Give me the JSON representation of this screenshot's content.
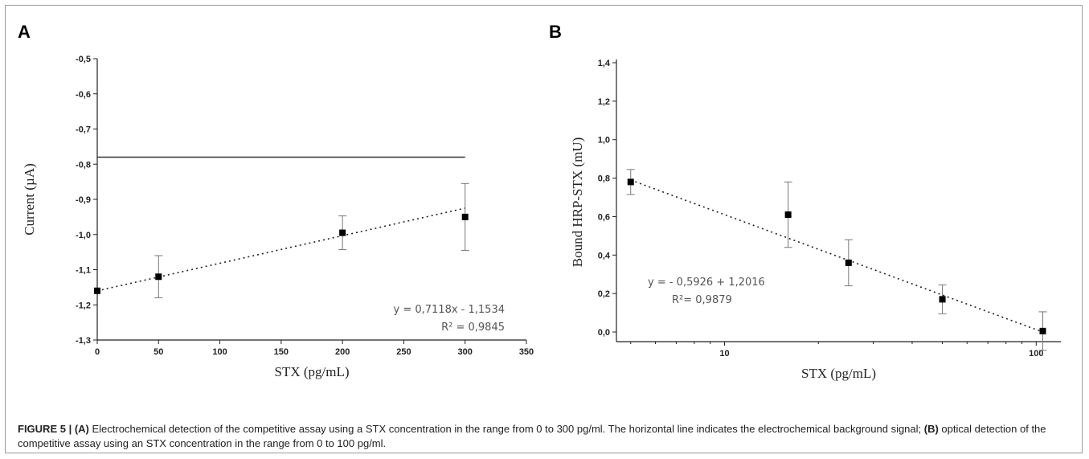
{
  "chart_data": [
    {
      "panel": "A",
      "type": "scatter",
      "xlabel": "STX (pg/mL)",
      "ylabel": "Current (µA)",
      "xlim": [
        0,
        350
      ],
      "ylim": [
        -1.3,
        -0.5
      ],
      "x_ticks": [
        0,
        50,
        100,
        150,
        200,
        250,
        300,
        350
      ],
      "x_tick_labels": [
        "0",
        "50",
        "100",
        "150",
        "200",
        "250",
        "300",
        "350"
      ],
      "y_ticks": [
        -0.5,
        -0.6,
        -0.7,
        -0.8,
        -0.9,
        -1.0,
        -1.1,
        -1.2,
        -1.3
      ],
      "y_tick_labels": [
        "-0,5",
        "-0,6",
        "-0,7",
        "-0,8",
        "-0,9",
        "-1,0",
        "-1,1",
        "-1,2",
        "-1,3"
      ],
      "points": [
        {
          "x": 0,
          "y": -1.16,
          "err": 0
        },
        {
          "x": 50,
          "y": -1.12,
          "err": 0.06
        },
        {
          "x": 200,
          "y": -0.995,
          "err": 0.048
        },
        {
          "x": 300,
          "y": -0.95,
          "err": 0.095
        }
      ],
      "background_line": {
        "y": -0.78,
        "x": [
          0,
          300
        ]
      },
      "fit": {
        "x": [
          0,
          300
        ],
        "y": [
          -1.16,
          -0.925
        ]
      },
      "annotation": {
        "line1": "y = 0,7118x - 1,1534",
        "line2": "R² = 0,9845"
      }
    },
    {
      "panel": "B",
      "type": "scatter",
      "xscale": "log",
      "xlabel": "STX (pg/mL)",
      "ylabel": "Bound HRP-STX (mU)",
      "xlim": [
        4.5,
        120
      ],
      "ylim": [
        -0.05,
        1.4
      ],
      "x_ticks": [
        10,
        100
      ],
      "x_tick_labels": [
        "10",
        "100"
      ],
      "y_ticks": [
        0.0,
        0.2,
        0.4,
        0.6,
        0.8,
        1.0,
        1.2,
        1.4
      ],
      "y_tick_labels": [
        "0,0",
        "0,2",
        "0,4",
        "0,6",
        "0,8",
        "1,0",
        "1,2",
        "1,4"
      ],
      "points": [
        {
          "x": 5,
          "y": 0.78,
          "err": 0.065
        },
        {
          "x": 16,
          "y": 0.61,
          "err": 0.17
        },
        {
          "x": 25,
          "y": 0.36,
          "err": 0.12
        },
        {
          "x": 50,
          "y": 0.17,
          "err": 0.075
        },
        {
          "x": 105,
          "y": 0.005,
          "err": 0.1
        }
      ],
      "fit": {
        "x": [
          5,
          105
        ],
        "y": [
          0.79,
          0.0
        ]
      },
      "annotation": {
        "line1": "y = - 0,5926 + 1,2016",
        "line2": "R²= 0,9879"
      }
    }
  ],
  "caption": {
    "label": "FIGURE 5 | ",
    "a_tag": "(A)",
    "a_text": " Electrochemical detection of the competitive assay using a STX concentration in the range from 0 to 300 pg/ml. The horizontal line indicates the electrochemical background signal; ",
    "b_tag": "(B)",
    "b_text": " optical detection of the competitive assay using an STX concentration in the range from 0 to 100 pg/ml."
  }
}
